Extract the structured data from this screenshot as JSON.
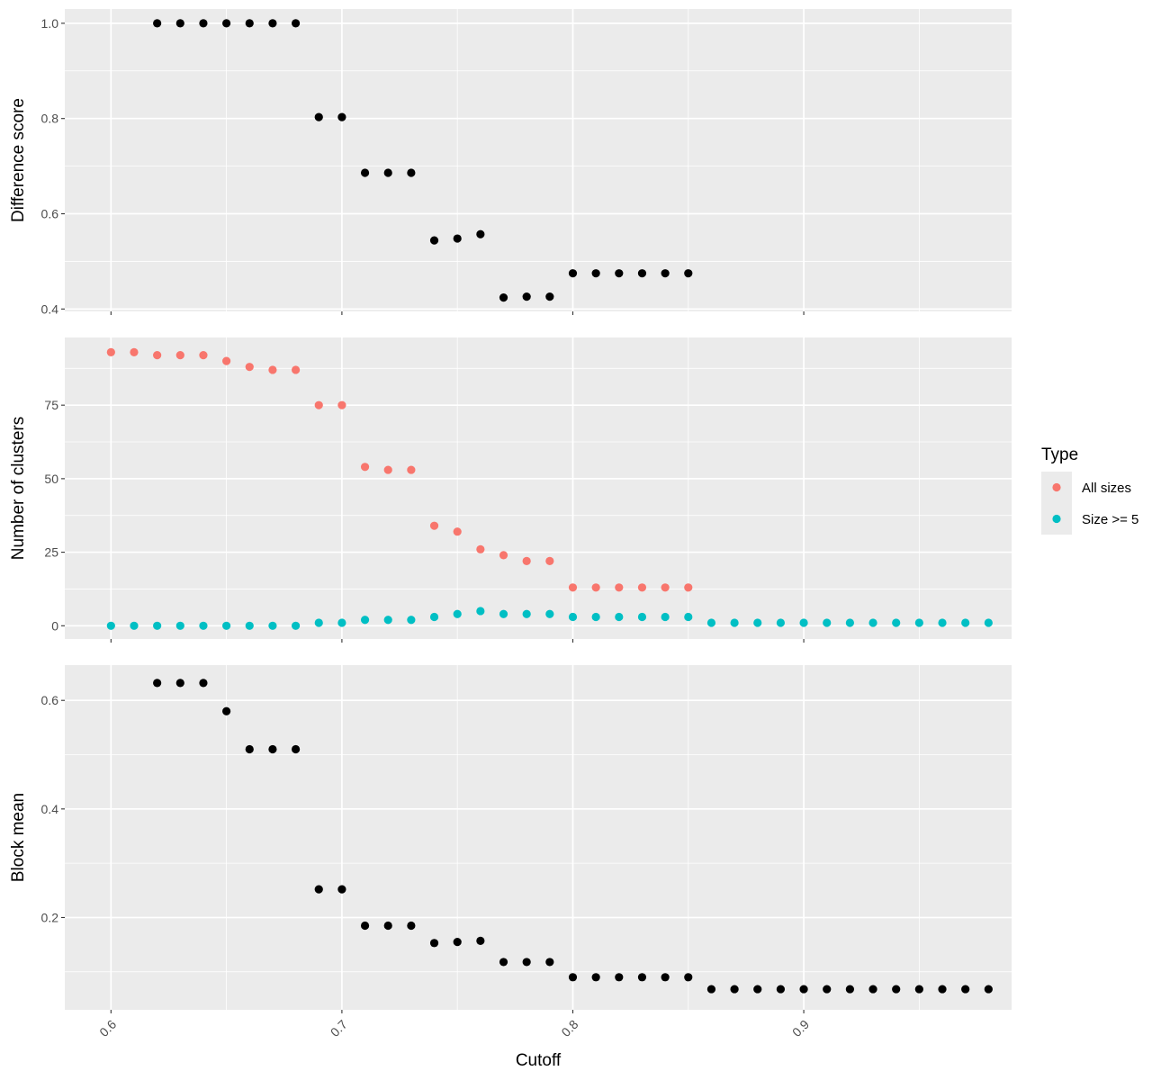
{
  "chart_data": [
    {
      "type": "scatter",
      "title": "",
      "xlabel": "",
      "ylabel": "Difference score",
      "xlim": [
        0.58,
        0.99
      ],
      "ylim": [
        0.395,
        1.03
      ],
      "yticks": [
        0.4,
        0.6,
        0.8,
        1.0
      ],
      "ytick_labels": [
        "0.4",
        "0.6",
        "0.8",
        "1.0"
      ],
      "grid": true,
      "series": [
        {
          "color": "#000000",
          "x": [
            0.62,
            0.63,
            0.64,
            0.65,
            0.66,
            0.67,
            0.68,
            0.69,
            0.7,
            0.71,
            0.72,
            0.73,
            0.74,
            0.75,
            0.76,
            0.77,
            0.78,
            0.79,
            0.8,
            0.81,
            0.82,
            0.83,
            0.84,
            0.85
          ],
          "y": [
            1.0,
            1.0,
            1.0,
            1.0,
            1.0,
            1.0,
            1.0,
            0.803,
            0.803,
            0.686,
            0.686,
            0.686,
            0.544,
            0.548,
            0.557,
            0.424,
            0.426,
            0.426,
            0.475,
            0.475,
            0.475,
            0.475,
            0.475,
            0.475
          ]
        }
      ]
    },
    {
      "type": "scatter",
      "title": "",
      "xlabel": "",
      "ylabel": "Number of clusters",
      "xlim": [
        0.58,
        0.99
      ],
      "ylim": [
        -4.5,
        98
      ],
      "yticks": [
        0,
        25,
        50,
        75
      ],
      "ytick_labels": [
        "0",
        "25",
        "50",
        "75"
      ],
      "grid": true,
      "legend": {
        "title": "Type",
        "placement": "right",
        "entries": [
          "All sizes",
          "Size >= 5"
        ]
      },
      "series": [
        {
          "name": "All sizes",
          "color": "#F8766D",
          "x": [
            0.6,
            0.61,
            0.62,
            0.63,
            0.64,
            0.65,
            0.66,
            0.67,
            0.68,
            0.69,
            0.7,
            0.71,
            0.72,
            0.73,
            0.74,
            0.75,
            0.76,
            0.77,
            0.78,
            0.79,
            0.8,
            0.81,
            0.82,
            0.83,
            0.84,
            0.85
          ],
          "y": [
            93,
            93,
            92,
            92,
            92,
            90,
            88,
            87,
            87,
            75,
            75,
            54,
            53,
            53,
            34,
            32,
            26,
            24,
            22,
            22,
            13,
            13,
            13,
            13,
            13,
            13
          ]
        },
        {
          "name": "Size >= 5",
          "color": "#00BFC4",
          "x": [
            0.6,
            0.61,
            0.62,
            0.63,
            0.64,
            0.65,
            0.66,
            0.67,
            0.68,
            0.69,
            0.7,
            0.71,
            0.72,
            0.73,
            0.74,
            0.75,
            0.76,
            0.77,
            0.78,
            0.79,
            0.8,
            0.81,
            0.82,
            0.83,
            0.84,
            0.85,
            0.86,
            0.87,
            0.88,
            0.89,
            0.9,
            0.91,
            0.92,
            0.93,
            0.94,
            0.95,
            0.96,
            0.97,
            0.98
          ],
          "y": [
            0,
            0,
            0,
            0,
            0,
            0,
            0,
            0,
            0,
            1,
            1,
            2,
            2,
            2,
            3,
            4,
            5,
            4,
            4,
            4,
            3,
            3,
            3,
            3,
            3,
            3,
            1,
            1,
            1,
            1,
            1,
            1,
            1,
            1,
            1,
            1,
            1,
            1,
            1
          ]
        }
      ]
    },
    {
      "type": "scatter",
      "title": "",
      "xlabel": "Cutoff",
      "ylabel": "Block mean",
      "xlim": [
        0.58,
        0.99
      ],
      "ylim": [
        0.03,
        0.665
      ],
      "yticks": [
        0.2,
        0.4,
        0.6
      ],
      "ytick_labels": [
        "0.2",
        "0.4",
        "0.6"
      ],
      "xticks": [
        0.6,
        0.7,
        0.8,
        0.9
      ],
      "xtick_labels": [
        "0.6",
        "0.7",
        "0.8",
        "0.9"
      ],
      "grid": true,
      "series": [
        {
          "color": "#000000",
          "x": [
            0.62,
            0.63,
            0.64,
            0.65,
            0.66,
            0.67,
            0.68,
            0.69,
            0.7,
            0.71,
            0.72,
            0.73,
            0.74,
            0.75,
            0.76,
            0.77,
            0.78,
            0.79,
            0.8,
            0.81,
            0.82,
            0.83,
            0.84,
            0.85,
            0.86,
            0.87,
            0.88,
            0.89,
            0.9,
            0.91,
            0.92,
            0.93,
            0.94,
            0.95,
            0.96,
            0.97,
            0.98
          ],
          "y": [
            0.632,
            0.632,
            0.632,
            0.58,
            0.51,
            0.51,
            0.51,
            0.252,
            0.252,
            0.185,
            0.185,
            0.185,
            0.153,
            0.155,
            0.157,
            0.118,
            0.118,
            0.118,
            0.09,
            0.09,
            0.09,
            0.09,
            0.09,
            0.09,
            0.068,
            0.068,
            0.068,
            0.068,
            0.068,
            0.068,
            0.068,
            0.068,
            0.068,
            0.068,
            0.068,
            0.068,
            0.068
          ]
        }
      ]
    }
  ]
}
